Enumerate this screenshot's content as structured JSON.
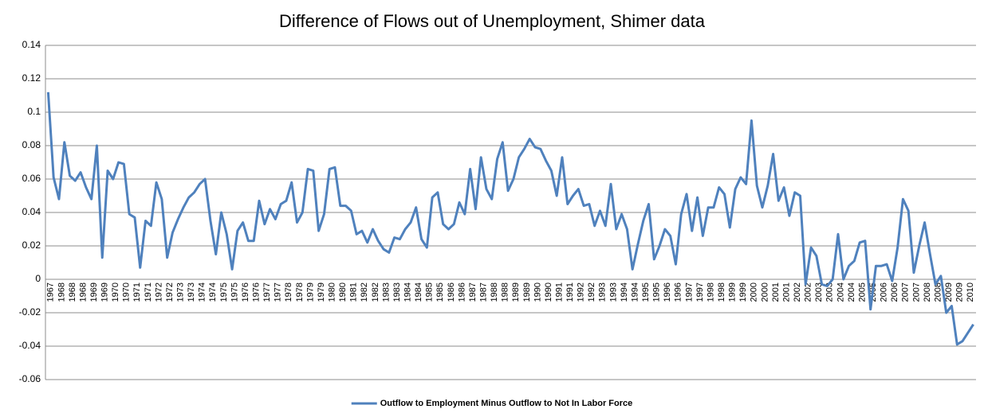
{
  "chart_data": {
    "type": "line",
    "title": "Difference of Flows out of Unemployment, Shimer data",
    "categories": [
      "1967",
      null,
      "1968",
      null,
      "1968",
      null,
      "1968",
      null,
      "1969",
      null,
      "1969",
      null,
      "1970",
      null,
      "1970",
      null,
      "1971",
      null,
      "1971",
      null,
      "1972",
      null,
      "1972",
      null,
      "1973",
      null,
      "1973",
      null,
      "1974",
      null,
      "1974",
      null,
      "1975",
      null,
      "1975",
      null,
      "1976",
      null,
      "1976",
      null,
      "1977",
      null,
      "1977",
      null,
      "1978",
      null,
      "1978",
      null,
      "1979",
      null,
      "1979",
      null,
      "1980",
      null,
      "1980",
      null,
      "1981",
      null,
      "1982",
      null,
      "1982",
      null,
      "1983",
      null,
      "1983",
      null,
      "1984",
      null,
      "1984",
      null,
      "1985",
      null,
      "1985",
      null,
      "1986",
      null,
      "1986",
      null,
      "1987",
      null,
      "1987",
      null,
      "1988",
      null,
      "1988",
      null,
      "1989",
      null,
      "1989",
      null,
      "1990",
      null,
      "1990",
      null,
      "1991",
      null,
      "1991",
      null,
      "1992",
      null,
      "1992",
      null,
      "1993",
      null,
      "1993",
      null,
      "1994",
      null,
      "1994",
      null,
      "1995",
      null,
      "1995",
      null,
      "1996",
      null,
      "1996",
      null,
      "1997",
      null,
      "1997",
      null,
      "1998",
      null,
      "1998",
      null,
      "1999",
      null,
      "1999",
      null,
      "2000",
      null,
      "2000",
      null,
      "2001",
      null,
      "2001",
      null,
      "2002",
      null,
      "2002",
      null,
      "2003",
      null,
      "2003",
      null,
      "2004",
      null,
      "2004",
      null,
      "2005",
      null,
      "2005",
      null,
      "2006",
      null,
      "2006",
      null,
      "2007",
      null,
      "2007",
      null,
      "2008",
      null,
      "2008",
      null,
      "2009",
      null,
      "2009",
      null,
      "2010",
      null
    ],
    "series": [
      {
        "name": "Outflow to Employment Minus Outflow to Not In Labor Force",
        "color": "#4f81bd",
        "values": [
          0.112,
          0.061,
          0.048,
          0.082,
          0.062,
          0.059,
          0.064,
          0.055,
          0.048,
          0.08,
          0.013,
          0.065,
          0.06,
          0.07,
          0.069,
          0.039,
          0.037,
          0.007,
          0.035,
          0.032,
          0.058,
          0.048,
          0.013,
          0.028,
          0.036,
          0.043,
          0.049,
          0.052,
          0.057,
          0.06,
          0.035,
          0.015,
          0.04,
          0.027,
          0.006,
          0.029,
          0.034,
          0.023,
          0.023,
          0.047,
          0.033,
          0.042,
          0.036,
          0.045,
          0.047,
          0.058,
          0.034,
          0.04,
          0.066,
          0.065,
          0.029,
          0.039,
          0.066,
          0.067,
          0.044,
          0.044,
          0.041,
          0.027,
          0.029,
          0.022,
          0.03,
          0.023,
          0.018,
          0.016,
          0.025,
          0.024,
          0.03,
          0.034,
          0.043,
          0.024,
          0.019,
          0.049,
          0.052,
          0.033,
          0.03,
          0.033,
          0.046,
          0.039,
          0.066,
          0.042,
          0.073,
          0.054,
          0.048,
          0.072,
          0.082,
          0.053,
          0.06,
          0.073,
          0.078,
          0.084,
          0.079,
          0.078,
          0.071,
          0.065,
          0.05,
          0.073,
          0.045,
          0.05,
          0.054,
          0.044,
          0.045,
          0.032,
          0.041,
          0.032,
          0.057,
          0.03,
          0.039,
          0.03,
          0.006,
          0.021,
          0.035,
          0.045,
          0.012,
          0.02,
          0.03,
          0.026,
          0.009,
          0.039,
          0.051,
          0.029,
          0.049,
          0.026,
          0.043,
          0.043,
          0.055,
          0.051,
          0.031,
          0.054,
          0.061,
          0.057,
          0.095,
          0.056,
          0.043,
          0.056,
          0.075,
          0.047,
          0.055,
          0.038,
          0.052,
          0.05,
          -0.003,
          0.019,
          0.014,
          -0.003,
          -0.004,
          0,
          0.027,
          0,
          0.008,
          0.011,
          0.022,
          0.023,
          -0.018,
          0.008,
          0.008,
          0.009,
          -0.001,
          0.019,
          0.048,
          0.041,
          0.004,
          0.02,
          0.034,
          0.015,
          -0.003,
          0.002,
          -0.02,
          -0.016,
          -0.039,
          -0.037,
          -0.032,
          -0.027
        ]
      }
    ],
    "ylim": [
      -0.06,
      0.14
    ],
    "yticks": [
      -0.06,
      -0.04,
      -0.02,
      0,
      0.02,
      0.04,
      0.06,
      0.08,
      0.1,
      0.12,
      0.14
    ],
    "grid": true,
    "legend": "bottom"
  }
}
